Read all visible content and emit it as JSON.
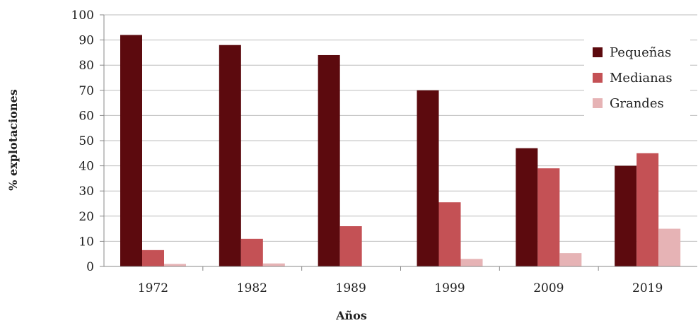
{
  "chart_data": {
    "type": "bar",
    "title": "",
    "xlabel": "Años",
    "ylabel": "% explotaciones",
    "categories": [
      "1972",
      "1982",
      "1989",
      "1999",
      "2009",
      "2019"
    ],
    "ylim": [
      0,
      100
    ],
    "yticks": [
      0,
      10,
      20,
      30,
      40,
      50,
      60,
      70,
      80,
      90,
      100
    ],
    "grid": "horizontal",
    "legend_position": "top-right",
    "series": [
      {
        "name": "Pequeñas",
        "color": "#5c0a0e",
        "values": [
          92,
          88,
          84,
          70,
          47,
          40
        ]
      },
      {
        "name": "Medianas",
        "color": "#c45155",
        "values": [
          6.5,
          11,
          16,
          25.5,
          39,
          45
        ]
      },
      {
        "name": "Grandes",
        "color": "#e6b3b5",
        "values": [
          1,
          1.2,
          0,
          3,
          5.3,
          15
        ]
      }
    ]
  }
}
